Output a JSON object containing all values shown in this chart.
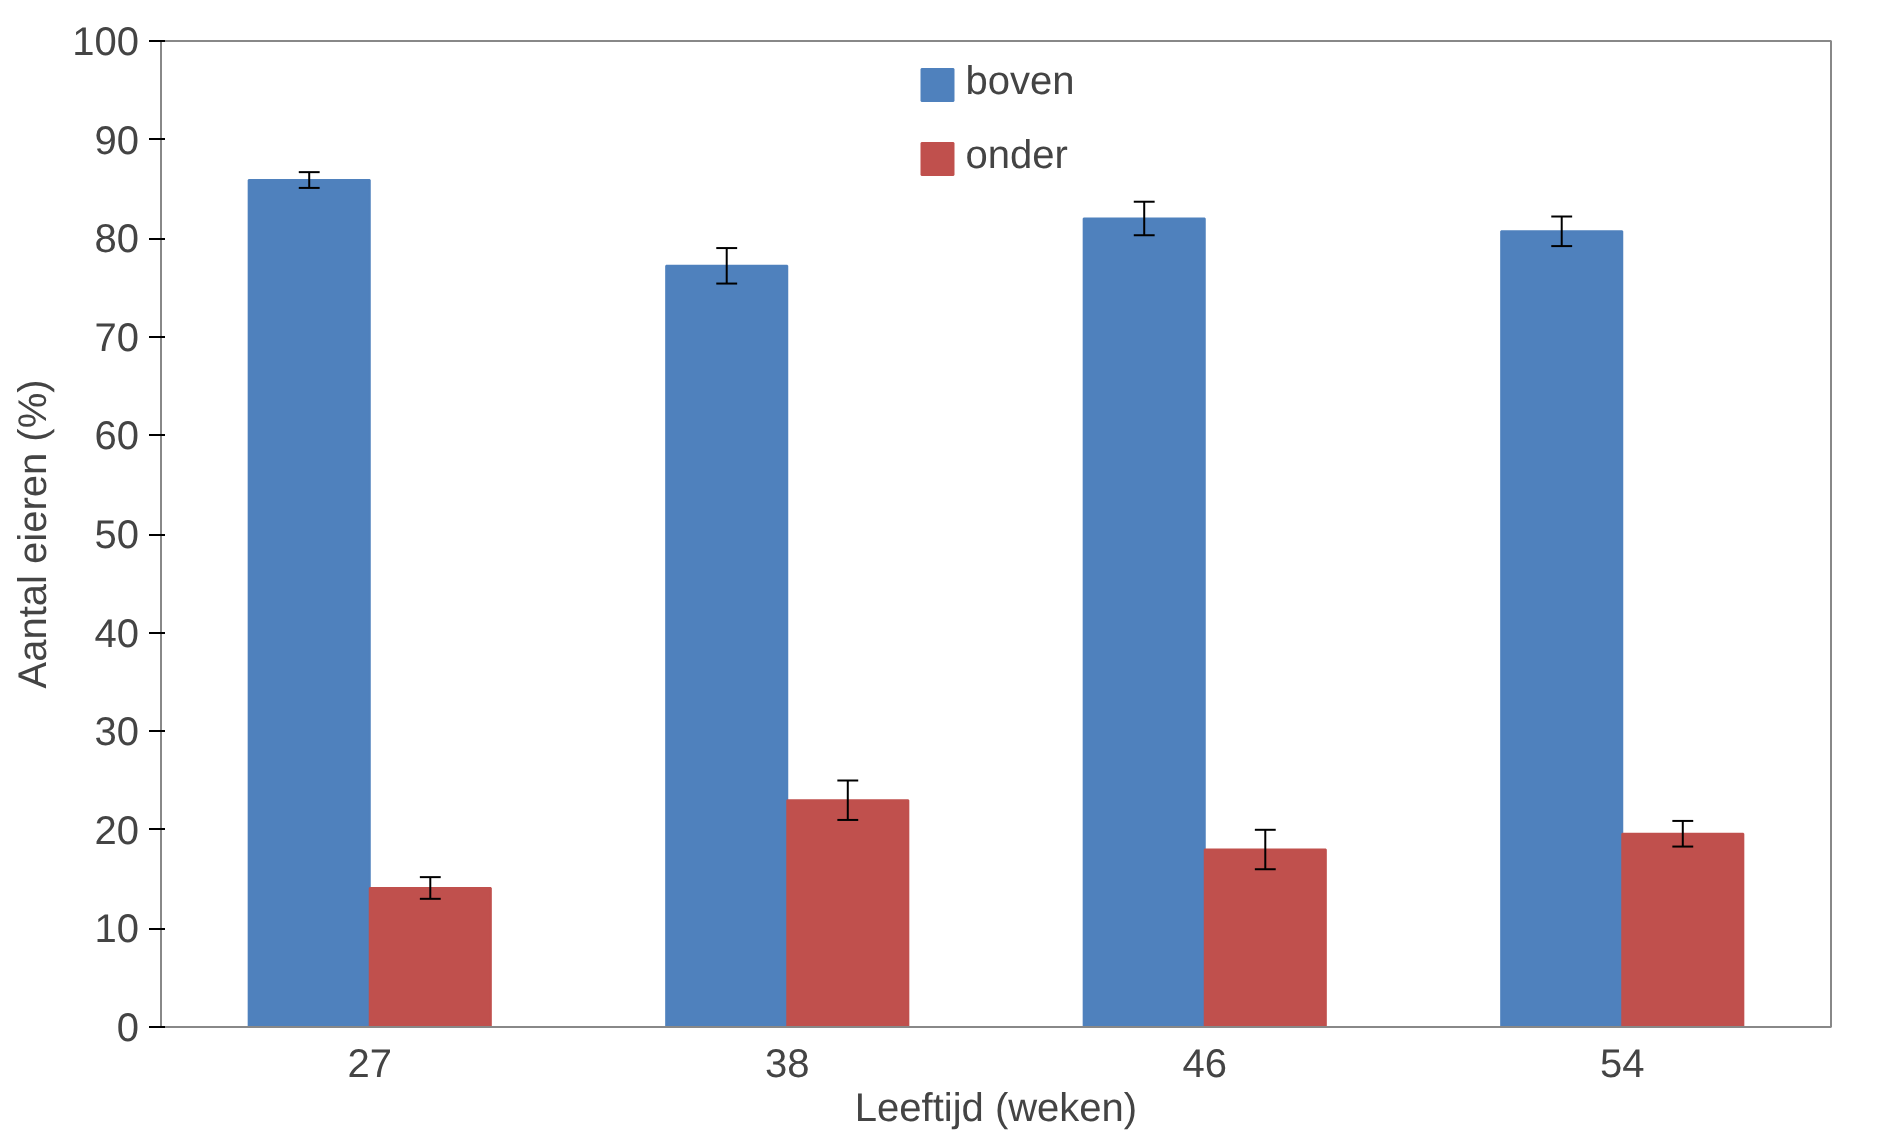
{
  "chart_data": {
    "type": "bar",
    "xlabel": "Leeftijd (weken)",
    "ylabel": "Aantal eieren (%)",
    "categories": [
      "27",
      "38",
      "46",
      "54"
    ],
    "series": [
      {
        "name": "boven",
        "color": "#4f81bd",
        "values": [
          85.9,
          77.2,
          82.0,
          80.7
        ],
        "errors": [
          0.8,
          1.8,
          1.7,
          1.5
        ]
      },
      {
        "name": "onder",
        "color": "#c0504d",
        "values": [
          14.1,
          23.0,
          18.0,
          19.6
        ],
        "errors": [
          1.1,
          2.0,
          2.0,
          1.3
        ]
      }
    ],
    "ylim": [
      0,
      100
    ],
    "yticks": [
      0,
      10,
      20,
      30,
      40,
      50,
      60,
      70,
      80,
      90,
      100
    ],
    "grid": false,
    "legend": "top"
  }
}
